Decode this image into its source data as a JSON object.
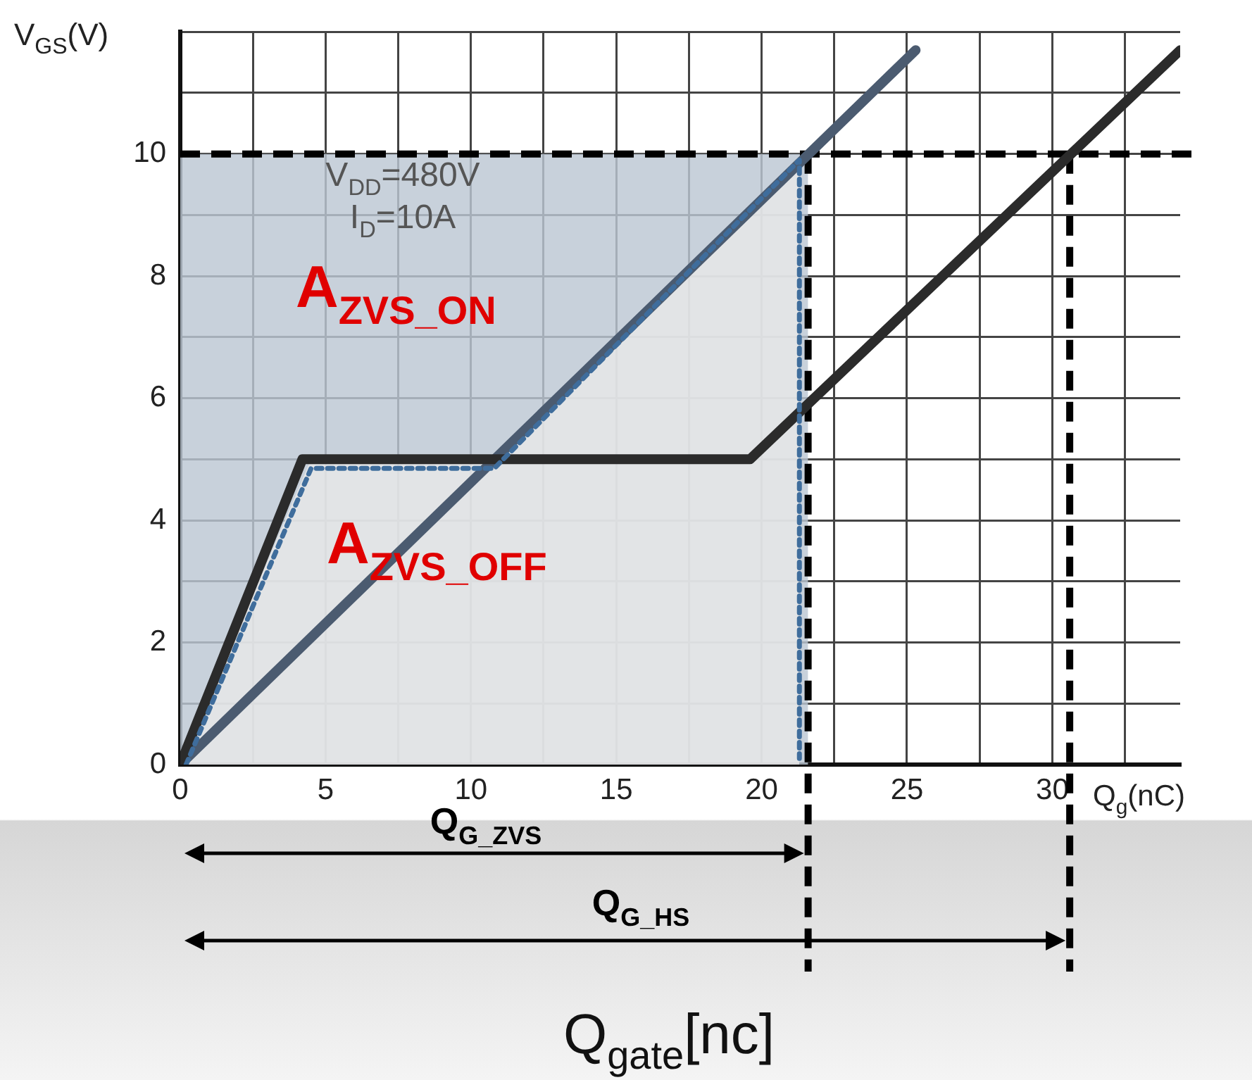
{
  "chart_data": {
    "type": "line",
    "ylabel": "V$_{GS}$(V)",
    "xlabel": "Q$_{gate}$[nc]",
    "annotations": [
      "V$_{DD}$=480V",
      "I$_{D}$=10A",
      "A$_{ZVS_ON}$",
      "A$_{ZVS_OFF}$",
      "Q$_{G_ZVS}$",
      "Q$_{G_HS}$",
      "Q$_{g}$(nC)"
    ],
    "xlim": [
      0,
      34.4
    ],
    "ylim": [
      0,
      12
    ],
    "xticks": [
      0,
      {
        "value": 2.5,
        "label": null
      },
      5,
      {
        "value": 7.5,
        "label": null
      },
      10,
      {
        "value": 12.5,
        "label": null
      },
      15,
      {
        "value": 17.5,
        "label": null
      },
      20,
      {
        "value": 22.5,
        "label": null
      },
      25,
      {
        "value": 27.5,
        "label": null
      },
      30,
      {
        "value": 32.5,
        "label": null
      }
    ],
    "yticks": [
      0,
      {
        "value": 1,
        "label": null
      },
      2,
      {
        "value": 3,
        "label": null
      },
      4,
      {
        "value": 5,
        "label": null
      },
      6,
      {
        "value": 7,
        "label": null
      },
      8,
      {
        "value": 9,
        "label": null
      },
      10,
      {
        "value": 11,
        "label": null
      },
      {
        "value": 12,
        "label": null
      }
    ],
    "grid": true,
    "legend": false,
    "marker": "none",
    "series": [
      {
        "type": "area",
        "color": "#bcc7d3",
        "x": [
          0,
          21.6
        ],
        "values": [
          10,
          10
        ]
      },
      {
        "type": "area",
        "color": "#e8e8e8",
        "x": [
          0,
          4.5,
          10.8,
          21.3
        ],
        "values": [
          0,
          5,
          5,
          9.9
        ]
      },
      {
        "color": "#4b5b70",
        "x": [
          0,
          25.3
        ],
        "values": [
          0,
          11.7
        ]
      },
      {
        "color": "#2b2b2b",
        "x": [
          0,
          4.2,
          19.6,
          34.4
        ],
        "values": [
          0,
          5,
          5,
          11.7
        ]
      },
      {
        "color": "#3f6d9c",
        "line_style": "dotted",
        "x": [
          0.2,
          4.5,
          10.8,
          21.3,
          21.3
        ],
        "values": [
          0,
          4.85,
          4.85,
          9.9,
          0.1
        ]
      }
    ],
    "ref_lines": [
      {
        "axis": "y",
        "value": 10,
        "color": "#000000",
        "line_style": "dashed"
      },
      {
        "axis": "x",
        "value": 21.6,
        "color": "#000000",
        "line_style": "dashed"
      },
      {
        "axis": "x",
        "value": 30.6,
        "color": "#000000",
        "line_style": "dashed"
      }
    ]
  }
}
